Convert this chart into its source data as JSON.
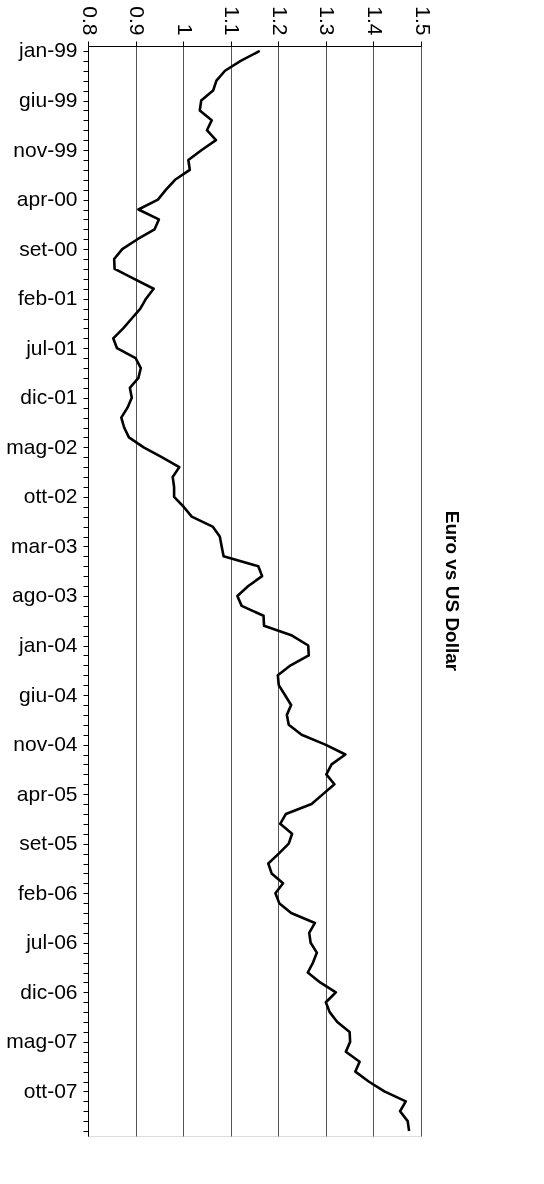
{
  "chart_data": {
    "type": "line",
    "orientation": "horizontal",
    "title": "Euro vs US Dollar",
    "categories": [
      "jan-99",
      null,
      null,
      null,
      null,
      "giu-99",
      null,
      null,
      null,
      null,
      "nov-99",
      null,
      null,
      null,
      null,
      "apr-00",
      null,
      null,
      null,
      null,
      "set-00",
      null,
      null,
      null,
      null,
      "feb-01",
      null,
      null,
      null,
      null,
      "jul-01",
      null,
      null,
      null,
      null,
      "dic-01",
      null,
      null,
      null,
      null,
      "mag-02",
      null,
      null,
      null,
      null,
      "ott-02",
      null,
      null,
      null,
      null,
      "mar-03",
      null,
      null,
      null,
      null,
      "ago-03",
      null,
      null,
      null,
      null,
      "jan-04",
      null,
      null,
      null,
      null,
      "giu-04",
      null,
      null,
      null,
      null,
      "nov-04",
      null,
      null,
      null,
      null,
      "apr-05",
      null,
      null,
      null,
      null,
      "set-05",
      null,
      null,
      null,
      null,
      "feb-06",
      null,
      null,
      null,
      null,
      "jul-06",
      null,
      null,
      null,
      null,
      "dic-06",
      null,
      null,
      null,
      null,
      "mag-07",
      null,
      null,
      null,
      null,
      "ott-07",
      null,
      null,
      null,
      null
    ],
    "series": [
      {
        "color": "#000000",
        "values": [
          1.161,
          1.121,
          1.088,
          1.07,
          1.063,
          1.038,
          1.035,
          1.06,
          1.05,
          1.069,
          1.039,
          1.011,
          1.014,
          0.983,
          0.964,
          0.947,
          0.906,
          0.949,
          0.94,
          0.904,
          0.872,
          0.855,
          0.856,
          0.897,
          0.938,
          0.922,
          0.91,
          0.892,
          0.874,
          0.853,
          0.861,
          0.9,
          0.911,
          0.906,
          0.888,
          0.892,
          0.883,
          0.87,
          0.876,
          0.886,
          0.917,
          0.955,
          0.992,
          0.978,
          0.981,
          0.981,
          1.001,
          1.018,
          1.062,
          1.077,
          1.081,
          1.085,
          1.158,
          1.166,
          1.137,
          1.114,
          1.123,
          1.169,
          1.17,
          1.229,
          1.263,
          1.264,
          1.226,
          1.199,
          1.201,
          1.214,
          1.227,
          1.218,
          1.222,
          1.249,
          1.299,
          1.341,
          1.312,
          1.301,
          1.318,
          1.294,
          1.27,
          1.216,
          1.204,
          1.229,
          1.222,
          1.201,
          1.179,
          1.186,
          1.21,
          1.194,
          1.202,
          1.227,
          1.277,
          1.265,
          1.268,
          1.281,
          1.273,
          1.262,
          1.288,
          1.321,
          1.3,
          1.308,
          1.324,
          1.35,
          1.351,
          1.342,
          1.371,
          1.362,
          1.39,
          1.423,
          1.468,
          1.456,
          1.472,
          1.475
        ]
      }
    ],
    "xlim": [
      0.8,
      1.5
    ],
    "xticks": [
      0.8,
      0.9,
      1,
      1.1,
      1.2,
      1.3,
      1.4,
      1.5
    ],
    "grid": "x",
    "legend": false,
    "marker": "none",
    "line_style": "solid"
  }
}
